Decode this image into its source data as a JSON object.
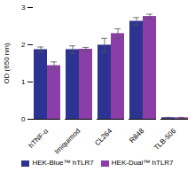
{
  "chart_data": {
    "type": "bar",
    "categories": [
      "hTNF-α",
      "Imiquimod",
      "CL264",
      "R848",
      "TLB-506"
    ],
    "series": [
      {
        "name": "HEK-Blue™ hTLR7",
        "color": "#2c3391",
        "values": [
          1.87,
          1.87,
          1.99,
          2.63,
          0.04
        ],
        "errors": [
          0.07,
          0.1,
          0.18,
          0.1,
          0.01
        ]
      },
      {
        "name": "HEK-Dual™ hTLR7",
        "color": "#8b3da8",
        "values": [
          1.44,
          1.88,
          2.3,
          2.76,
          0.04
        ],
        "errors": [
          0.1,
          0.05,
          0.13,
          0.06,
          0.01
        ]
      }
    ],
    "ylabel": "OD (650 nm)",
    "ylim": [
      0,
      3.0
    ],
    "yticks": [
      0,
      1,
      2,
      3
    ],
    "legend": "bottom"
  }
}
